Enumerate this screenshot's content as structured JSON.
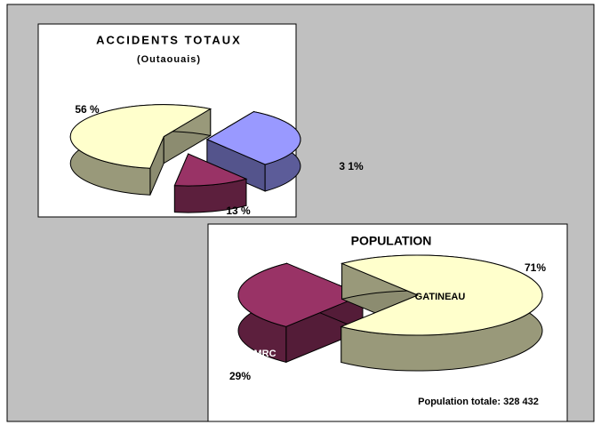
{
  "chart_data": [
    {
      "type": "pie3d",
      "title": "ACCIDENTS TOTAUX",
      "subtitle": "(Outaouais)",
      "values": [
        31,
        13,
        56
      ],
      "value_labels": [
        "3 1%",
        "13 %",
        "56 %"
      ],
      "colors": [
        "#9999ff",
        "#993366",
        "#ffffcc"
      ]
    },
    {
      "type": "pie3d",
      "title": "POPULATION",
      "categories": [
        "GATINEAU",
        "MRC"
      ],
      "values": [
        71,
        29
      ],
      "value_labels": [
        "71%",
        "29%"
      ],
      "colors": [
        "#ffffcc",
        "#993366"
      ],
      "annotation": "Population totale: 328 432"
    }
  ]
}
